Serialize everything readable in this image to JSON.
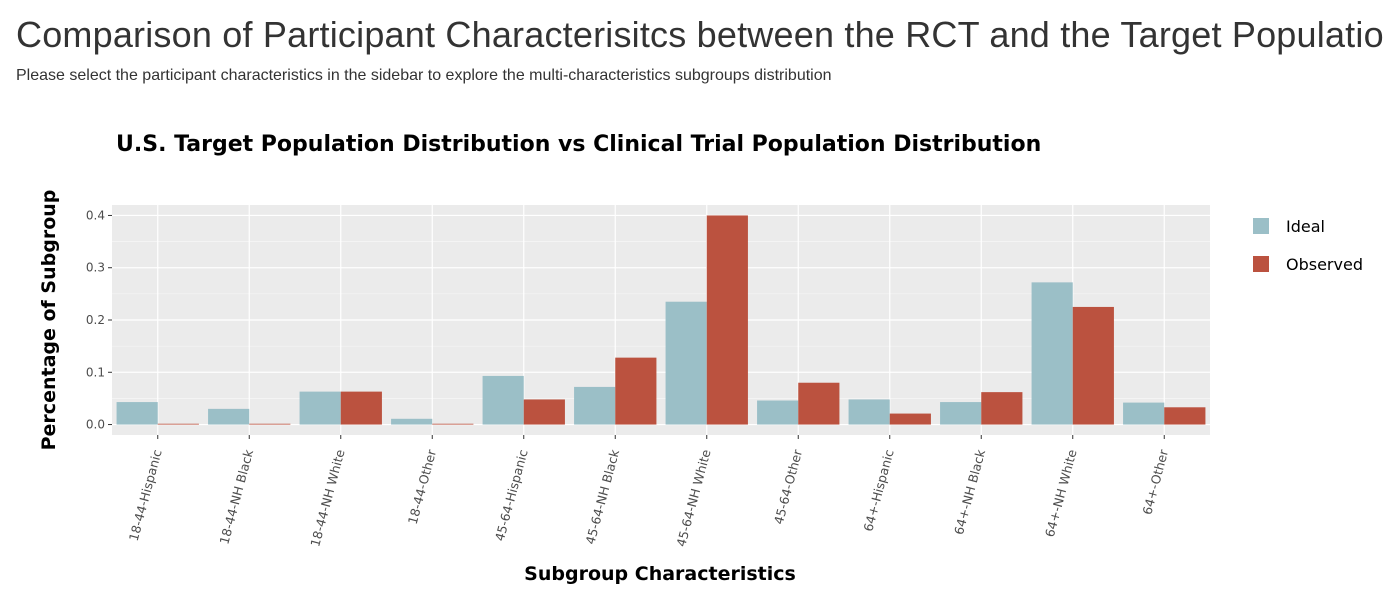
{
  "page": {
    "title": "Comparison of Participant Characterisitcs between the RCT and the Target Population",
    "subtitle": "Please select the participant characteristics in the sidebar to explore the multi-characteristics subgroups distribution"
  },
  "colors": {
    "ideal": "#9bbfc7",
    "observed": "#bb523f",
    "panel": "#ebebeb",
    "grid": "#ffffff"
  },
  "chart_data": {
    "type": "bar",
    "title": "U.S. Target Population Distribution vs Clinical Trial Population Distribution",
    "xlabel": "Subgroup Characteristics",
    "ylabel": "Percentage of Subgroup",
    "ylim": [
      -0.02,
      0.42
    ],
    "yticks": [
      0.0,
      0.1,
      0.2,
      0.3,
      0.4
    ],
    "ytick_labels": [
      "0.0",
      "0.1",
      "0.2",
      "0.3",
      "0.4"
    ],
    "grid": true,
    "legend_position": "right",
    "categories": [
      "18-44-Hispanic",
      "18-44-NH Black",
      "18-44-NH White",
      "18-44-Other",
      "45-64-Hispanic",
      "45-64-NH Black",
      "45-64-NH White",
      "45-64-Other",
      "64+-Hispanic",
      "64+-NH Black",
      "64+-NH White",
      "64+-Other"
    ],
    "series": [
      {
        "name": "Ideal",
        "values": [
          0.043,
          0.03,
          0.063,
          0.011,
          0.093,
          0.072,
          0.235,
          0.046,
          0.048,
          0.043,
          0.272,
          0.042
        ]
      },
      {
        "name": "Observed",
        "values": [
          0.001,
          0.0,
          0.063,
          0.001,
          0.048,
          0.128,
          0.4,
          0.08,
          0.021,
          0.062,
          0.225,
          0.033
        ]
      }
    ]
  }
}
